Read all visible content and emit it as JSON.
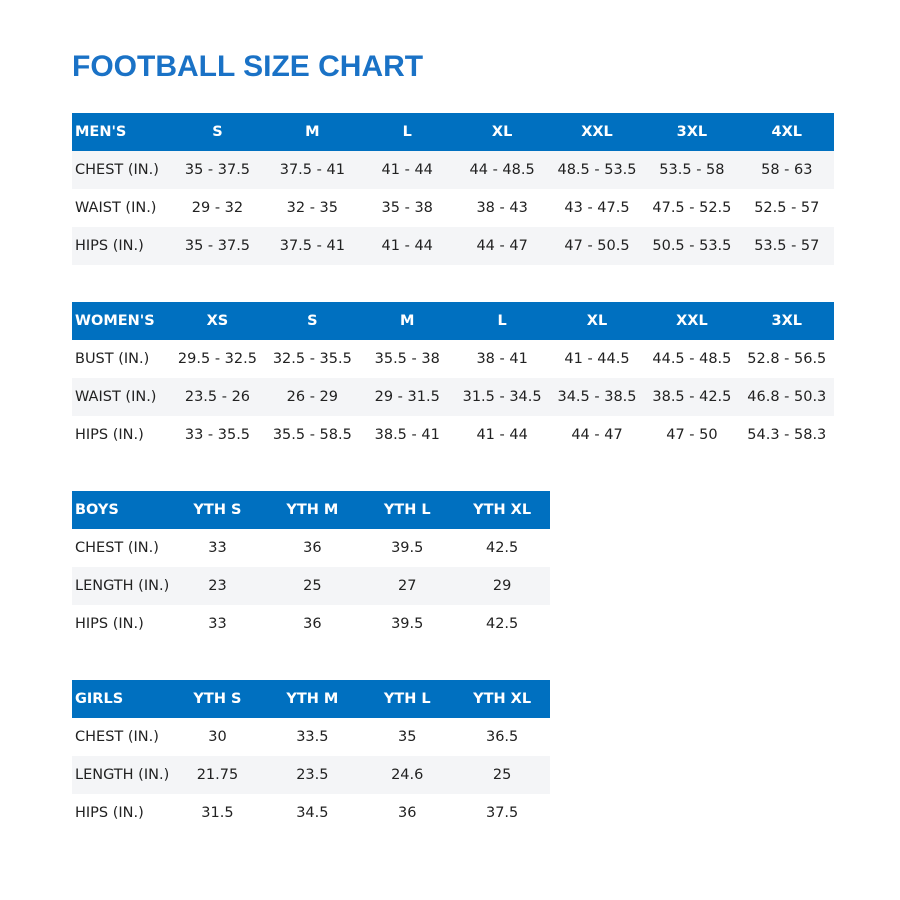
{
  "title": "FOOTBALL SIZE CHART",
  "header_color": "#0070c0",
  "title_color": "#1a72c6",
  "tables": [
    {
      "name": "mens",
      "headers": [
        "MEN'S",
        "S",
        "M",
        "L",
        "XL",
        "XXL",
        "3XL",
        "4XL"
      ],
      "alt_start": 0,
      "rows": [
        [
          "CHEST (IN.)",
          "35 - 37.5",
          "37.5 - 41",
          "41 - 44",
          "44 - 48.5",
          "48.5 - 53.5",
          "53.5 - 58",
          "58 - 63"
        ],
        [
          "WAIST (IN.)",
          "29 - 32",
          "32 - 35",
          "35 - 38",
          "38 - 43",
          "43 - 47.5",
          "47.5 - 52.5",
          "52.5 - 57"
        ],
        [
          "HIPS (IN.)",
          "35 - 37.5",
          "37.5 - 41",
          "41 - 44",
          "44 - 47",
          "47 - 50.5",
          "50.5 - 53.5",
          "53.5 - 57"
        ]
      ]
    },
    {
      "name": "womens",
      "headers": [
        "WOMEN'S",
        "XS",
        "S",
        "M",
        "L",
        "XL",
        "XXL",
        "3XL"
      ],
      "alt_start": 1,
      "rows": [
        [
          "BUST (IN.)",
          "29.5 - 32.5",
          "32.5 - 35.5",
          "35.5 - 38",
          "38 - 41",
          "41 - 44.5",
          "44.5 - 48.5",
          "52.8 - 56.5"
        ],
        [
          "WAIST (IN.)",
          "23.5 - 26",
          "26 - 29",
          "29 - 31.5",
          "31.5 - 34.5",
          "34.5 - 38.5",
          "38.5 - 42.5",
          "46.8 - 50.3"
        ],
        [
          "HIPS (IN.)",
          "33 - 35.5",
          "35.5 - 58.5",
          "38.5 - 41",
          "41 - 44",
          "44 - 47",
          "47 - 50",
          "54.3 - 58.3"
        ]
      ]
    },
    {
      "name": "boys",
      "headers": [
        "BOYS",
        "YTH S",
        "YTH M",
        "YTH L",
        "YTH XL"
      ],
      "alt_start": 1,
      "rows": [
        [
          "CHEST (IN.)",
          "33",
          "36",
          "39.5",
          "42.5"
        ],
        [
          "LENGTH (IN.)",
          "23",
          "25",
          "27",
          "29"
        ],
        [
          "HIPS (IN.)",
          "33",
          "36",
          "39.5",
          "42.5"
        ]
      ]
    },
    {
      "name": "girls",
      "headers": [
        "GIRLS",
        "YTH S",
        "YTH M",
        "YTH L",
        "YTH XL"
      ],
      "alt_start": 1,
      "rows": [
        [
          "CHEST (IN.)",
          "30",
          "33.5",
          "35",
          "36.5"
        ],
        [
          "LENGTH (IN.)",
          "21.75",
          "23.5",
          "24.6",
          "25"
        ],
        [
          "HIPS (IN.)",
          "31.5",
          "34.5",
          "36",
          "37.5"
        ]
      ]
    }
  ]
}
